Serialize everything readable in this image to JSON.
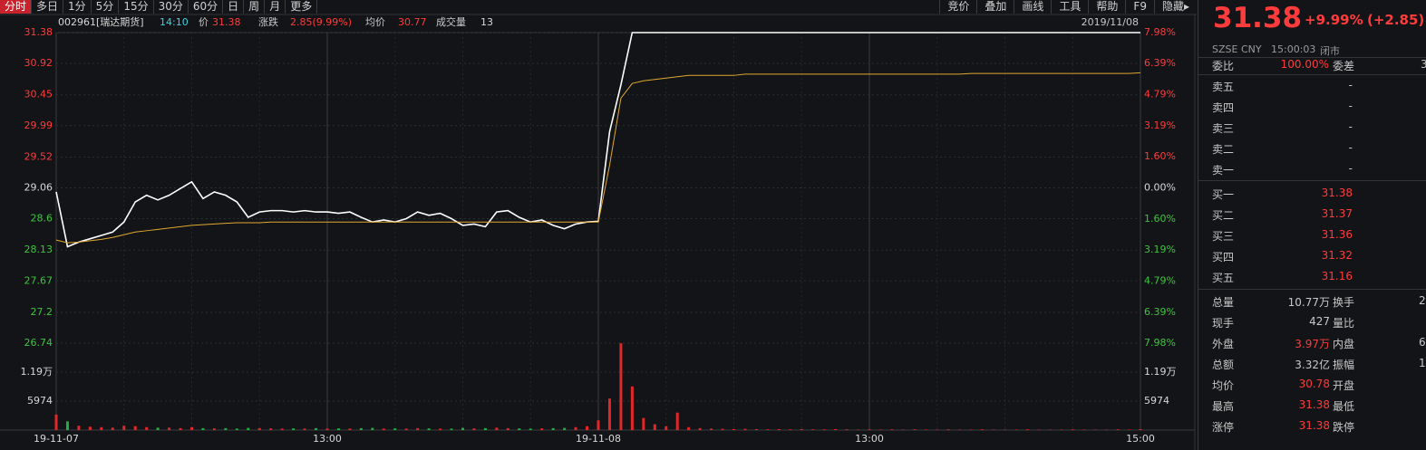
{
  "toolbar": {
    "left": [
      "分时",
      "多日",
      "1分",
      "5分",
      "15分",
      "30分",
      "60分",
      "日",
      "周",
      "月",
      "更多"
    ],
    "right": [
      "竞价",
      "叠加",
      "画线",
      "工具",
      "帮助",
      "F9",
      "隐藏▸"
    ]
  },
  "header": {
    "code": "002961[瑞达期货]",
    "time": "14:10",
    "price": "31.38",
    "change_label": "涨跌",
    "change": "2.85(9.99%)",
    "avg": "30.77",
    "volume_label": "成交量",
    "volume": "13",
    "date": "2019/11/08"
  },
  "chart_data": [
    {
      "type": "line",
      "categories": [
        "19-11-07",
        null,
        null,
        null,
        null,
        null,
        null,
        null,
        null,
        null,
        null,
        null,
        null,
        null,
        null,
        null,
        null,
        null,
        null,
        null,
        null,
        null,
        null,
        null,
        "13:00",
        null,
        null,
        null,
        null,
        null,
        null,
        null,
        null,
        null,
        null,
        null,
        null,
        null,
        null,
        null,
        null,
        null,
        null,
        null,
        null,
        null,
        null,
        null,
        "19-11-08",
        null,
        null,
        null,
        null,
        null,
        null,
        null,
        null,
        null,
        null,
        null,
        null,
        null,
        null,
        null,
        null,
        null,
        null,
        null,
        null,
        null,
        null,
        null,
        "13:00",
        null,
        null,
        null,
        null,
        null,
        null,
        null,
        null,
        null,
        null,
        null,
        null,
        null,
        null,
        null,
        null,
        null,
        null,
        null,
        null,
        null,
        null,
        null,
        "15:00"
      ],
      "series": [
        {
          "name": "价",
          "color": "#ffffff",
          "values": [
            29.0,
            28.18,
            28.25,
            28.3,
            28.35,
            28.4,
            28.55,
            28.85,
            28.95,
            28.88,
            28.95,
            29.05,
            29.15,
            28.9,
            29.0,
            28.95,
            28.85,
            28.62,
            28.7,
            28.72,
            28.72,
            28.7,
            28.72,
            28.7,
            28.7,
            28.68,
            28.7,
            28.62,
            28.55,
            28.58,
            28.55,
            28.6,
            28.7,
            28.65,
            28.68,
            28.6,
            28.5,
            28.52,
            28.48,
            28.7,
            28.72,
            28.62,
            28.55,
            28.58,
            28.5,
            28.45,
            28.52,
            28.55,
            28.56,
            29.9,
            30.6,
            31.38,
            31.38,
            31.38,
            31.38,
            31.38,
            31.38,
            31.38,
            31.38,
            31.38,
            31.38,
            31.38,
            31.38,
            31.38,
            31.38,
            31.38,
            31.38,
            31.38,
            31.38,
            31.38,
            31.38,
            31.38,
            31.38,
            31.38,
            31.38,
            31.38,
            31.38,
            31.38,
            31.38,
            31.38,
            31.38,
            31.38,
            31.38,
            31.38,
            31.38,
            31.38,
            31.38,
            31.38,
            31.38,
            31.38,
            31.38,
            31.38,
            31.38,
            31.38,
            31.38,
            31.38,
            31.38
          ]
        },
        {
          "name": "均价",
          "color": "#e0a830",
          "values": [
            28.28,
            28.24,
            28.25,
            28.27,
            28.29,
            28.32,
            28.36,
            28.4,
            28.42,
            28.44,
            28.46,
            28.48,
            28.5,
            28.51,
            28.52,
            28.53,
            28.54,
            28.54,
            28.54,
            28.55,
            28.55,
            28.55,
            28.55,
            28.55,
            28.55,
            28.55,
            28.55,
            28.55,
            28.55,
            28.55,
            28.55,
            28.55,
            28.55,
            28.55,
            28.55,
            28.55,
            28.55,
            28.55,
            28.55,
            28.55,
            28.55,
            28.55,
            28.55,
            28.55,
            28.55,
            28.55,
            28.55,
            28.55,
            28.55,
            29.4,
            30.4,
            30.62,
            30.66,
            30.68,
            30.7,
            30.72,
            30.74,
            30.74,
            30.74,
            30.74,
            30.74,
            30.76,
            30.76,
            30.76,
            30.76,
            30.76,
            30.76,
            30.76,
            30.76,
            30.76,
            30.76,
            30.76,
            30.76,
            30.76,
            30.76,
            30.76,
            30.76,
            30.76,
            30.76,
            30.76,
            30.76,
            30.77,
            30.77,
            30.77,
            30.77,
            30.77,
            30.77,
            30.77,
            30.77,
            30.77,
            30.77,
            30.77,
            30.77,
            30.77,
            30.77,
            30.77,
            30.78
          ]
        }
      ],
      "ylim": [
        26.74,
        31.38
      ],
      "yticks": [
        31.38,
        30.92,
        30.45,
        29.99,
        29.52,
        29.06,
        28.6,
        28.13,
        27.67,
        27.2,
        26.74
      ],
      "y2lim": [
        -7.98,
        7.98
      ],
      "y2ticks": [
        {
          "value": 7.98,
          "label": "7.98%"
        },
        {
          "value": 6.39,
          "label": "6.39%"
        },
        {
          "value": 4.79,
          "label": "4.79%"
        },
        {
          "value": 3.19,
          "label": "3.19%"
        },
        {
          "value": 1.6,
          "label": "1.60%"
        },
        {
          "value": 0,
          "label": "0.00%"
        },
        {
          "value": -1.6,
          "label": "1.60%"
        },
        {
          "value": -3.19,
          "label": "3.19%"
        },
        {
          "value": -4.79,
          "label": "4.79%"
        },
        {
          "value": -6.39,
          "label": "6.39%"
        },
        {
          "value": -7.98,
          "label": "7.98%"
        }
      ],
      "grid": true
    },
    {
      "type": "bar",
      "values": [
        3200,
        1800,
        900,
        700,
        600,
        500,
        900,
        800,
        600,
        500,
        500,
        400,
        600,
        400,
        350,
        400,
        300,
        450,
        400,
        350,
        300,
        350,
        300,
        400,
        300,
        350,
        300,
        400,
        450,
        300,
        350,
        300,
        400,
        350,
        300,
        300,
        450,
        350,
        400,
        500,
        400,
        350,
        300,
        350,
        400,
        450,
        600,
        800,
        2000,
        6500,
        17900,
        9000,
        2500,
        1200,
        800,
        3600,
        600,
        400,
        300,
        250,
        200,
        250,
        200,
        150,
        200,
        150,
        200,
        150,
        150,
        200,
        150,
        100,
        150,
        100,
        150,
        100,
        150,
        100,
        100,
        150,
        100,
        100,
        150,
        100,
        100,
        100,
        150,
        100,
        100,
        100,
        150,
        100,
        100,
        100,
        150,
        100,
        200
      ],
      "ylim": [
        0,
        17922
      ],
      "yticks": [
        {
          "value": 11948,
          "label": "1.19万"
        },
        5974
      ],
      "grid": true
    }
  ],
  "quote": {
    "price": "31.38",
    "change_pct": "+9.99%",
    "change": "(+2.85)",
    "exchange": "SZSE",
    "currency": "CNY",
    "time": "15:00:03",
    "status": "闭市"
  },
  "order_book": {
    "ratio_label": "委比",
    "ratio": "100.00%",
    "diff_label": "委差",
    "diff": "3",
    "asks": [
      {
        "label": "卖五",
        "value": "-"
      },
      {
        "label": "卖四",
        "value": "-"
      },
      {
        "label": "卖三",
        "value": "-"
      },
      {
        "label": "卖二",
        "value": "-"
      },
      {
        "label": "卖一",
        "value": "-"
      }
    ],
    "bids": [
      {
        "label": "买一",
        "value": "31.38"
      },
      {
        "label": "买二",
        "value": "31.37"
      },
      {
        "label": "买三",
        "value": "31.36"
      },
      {
        "label": "买四",
        "value": "31.32"
      },
      {
        "label": "买五",
        "value": "31.16"
      }
    ]
  },
  "stats": [
    {
      "l1": "总量",
      "v1": "10.77万",
      "l2": "换手",
      "v2": "2"
    },
    {
      "l1": "现手",
      "v1": "427",
      "l2": "量比"
    },
    {
      "l1": "外盘",
      "v1": "3.97万",
      "l2": "内盘",
      "v2": "6"
    },
    {
      "l1": "总额",
      "v1": "3.32亿",
      "l2": "振幅",
      "v2": "1"
    },
    {
      "l1": "均价",
      "v1": "30.78",
      "l2": "开盘"
    },
    {
      "l1": "最高",
      "v1": "31.38",
      "l2": "最低"
    },
    {
      "l1": "涨停",
      "v1": "31.38",
      "l2": "跌停"
    }
  ]
}
